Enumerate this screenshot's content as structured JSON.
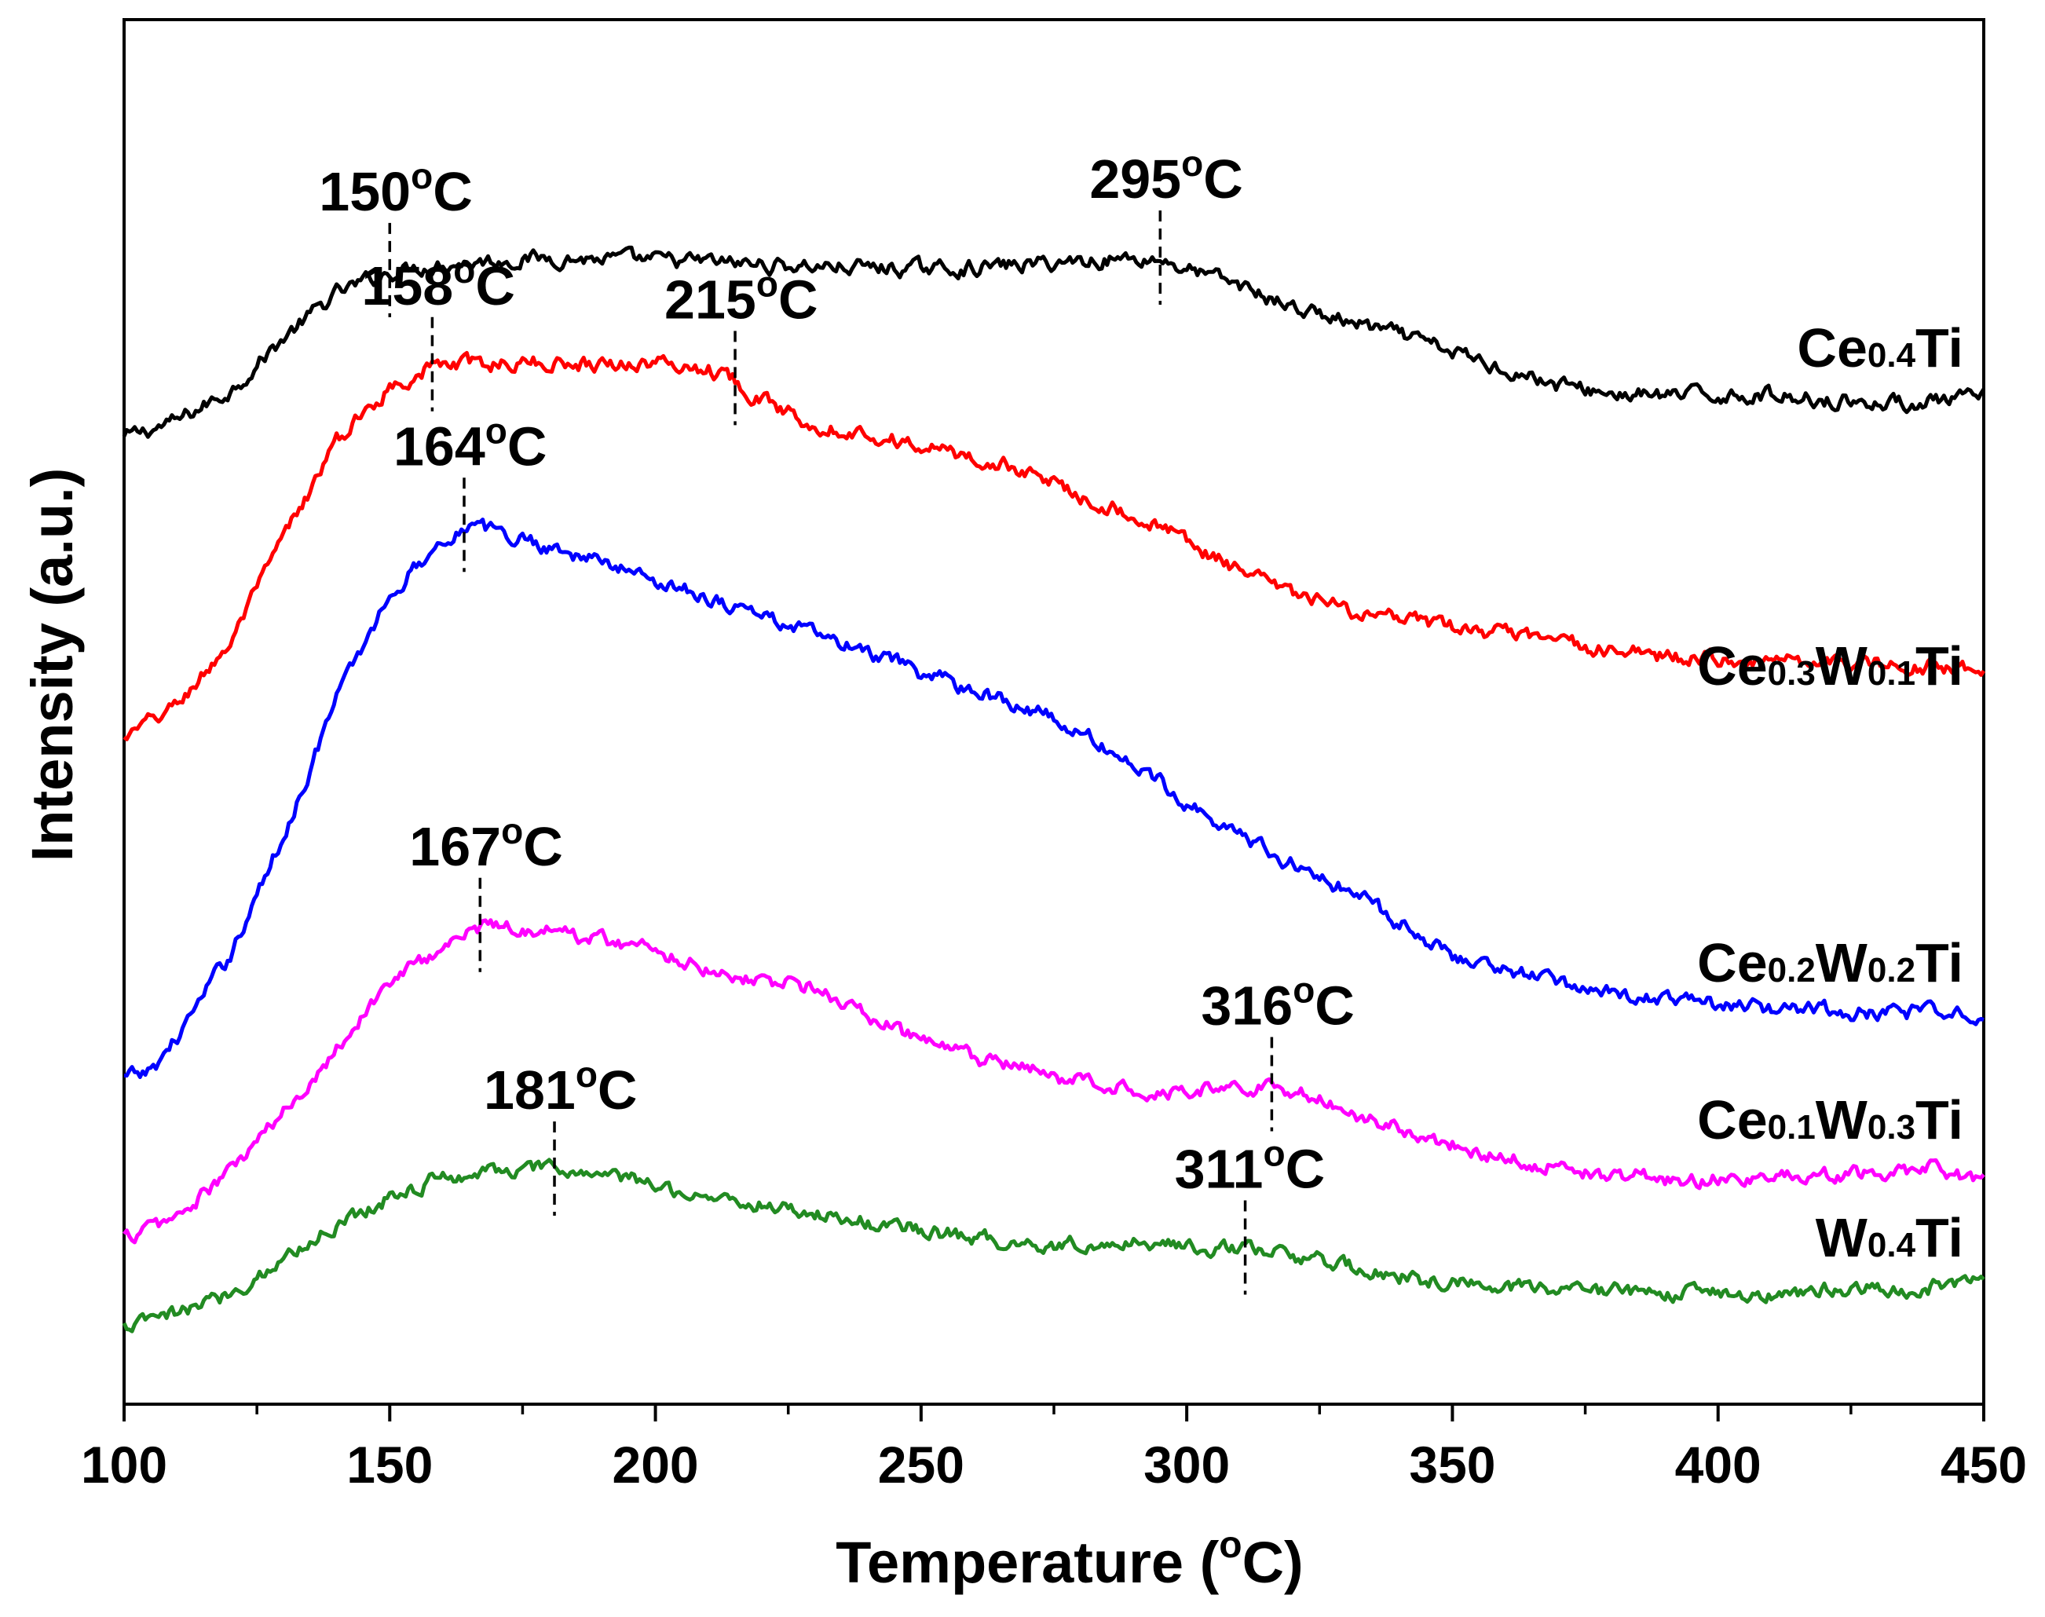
{
  "chart_data": {
    "type": "line",
    "xlabel": "Temperature (°C)",
    "xlabel_parts": {
      "main": "Temperature (",
      "sup": "o",
      "end": "C)"
    },
    "ylabel": "Intensity (a.u.)",
    "xlim": [
      100,
      450
    ],
    "ylim": [
      0,
      100
    ],
    "x_ticks": [
      100,
      150,
      200,
      250,
      300,
      350,
      400,
      450
    ],
    "x_tick_labels": [
      "100",
      "150",
      "200",
      "250",
      "300",
      "350",
      "400",
      "450"
    ],
    "minor_x_ticks": [
      125,
      175,
      225,
      275,
      325,
      375,
      425
    ],
    "y_ticks": [],
    "grid": false,
    "series": [
      {
        "name": "Ce0.4Ti",
        "label_parts": [
          {
            "t": "Ce",
            "sub": false
          },
          {
            "t": "0.4",
            "sub": true
          },
          {
            "t": "Ti",
            "sub": false
          }
        ],
        "color": "#000000",
        "x": [
          100,
          110,
          120,
          130,
          140,
          150,
          160,
          170,
          180,
          190,
          200,
          210,
          220,
          230,
          240,
          250,
          260,
          270,
          280,
          290,
          295,
          300,
          310,
          320,
          330,
          340,
          350,
          360,
          370,
          380,
          390,
          400,
          410,
          420,
          430,
          440,
          450
        ],
        "y": [
          69.8,
          71.0,
          73.2,
          77.0,
          80.2,
          81.8,
          82.4,
          82.6,
          82.8,
          82.7,
          82.6,
          82.5,
          82.3,
          82.2,
          82.1,
          82.0,
          82.1,
          82.3,
          82.6,
          82.8,
          82.7,
          82.0,
          80.8,
          79.2,
          78.2,
          77.2,
          76.0,
          74.8,
          73.6,
          73.0,
          72.8,
          72.9,
          72.9,
          72.6,
          72.3,
          72.4,
          72.7
        ]
      },
      {
        "name": "Ce0.3W0.1Ti",
        "label_parts": [
          {
            "t": "Ce",
            "sub": false
          },
          {
            "t": "0.3",
            "sub": true
          },
          {
            "t": "W",
            "sub": false
          },
          {
            "t": "0.1",
            "sub": true
          },
          {
            "t": "Ti",
            "sub": false
          }
        ],
        "color": "#ff0000",
        "x": [
          100,
          110,
          120,
          130,
          140,
          150,
          158,
          170,
          180,
          190,
          200,
          210,
          215,
          220,
          230,
          240,
          250,
          260,
          270,
          280,
          290,
          300,
          310,
          320,
          330,
          340,
          350,
          360,
          370,
          380,
          390,
          400,
          410,
          420,
          430,
          440,
          450
        ],
        "y": [
          48.0,
          50.5,
          55.0,
          62.5,
          69.5,
          73.5,
          75.0,
          75.2,
          75.2,
          75.2,
          75.2,
          74.8,
          74.0,
          72.5,
          70.8,
          70.1,
          69.2,
          68.3,
          67.4,
          65.7,
          64.2,
          62.4,
          60.1,
          58.5,
          57.4,
          56.6,
          56.1,
          55.6,
          55.0,
          54.4,
          54.0,
          53.8,
          53.8,
          53.8,
          53.5,
          53.3,
          53.2
        ]
      },
      {
        "name": "Ce0.2W0.2Ti",
        "label_parts": [
          {
            "t": "Ce",
            "sub": false
          },
          {
            "t": "0.2",
            "sub": true
          },
          {
            "t": "W",
            "sub": false
          },
          {
            "t": "0.2",
            "sub": true
          },
          {
            "t": "Ti",
            "sub": false
          }
        ],
        "color": "#0000ff",
        "x": [
          100,
          105,
          110,
          120,
          130,
          140,
          150,
          160,
          164,
          170,
          180,
          190,
          200,
          210,
          220,
          230,
          240,
          250,
          260,
          270,
          280,
          290,
          300,
          310,
          320,
          330,
          340,
          350,
          360,
          370,
          380,
          390,
          400,
          410,
          420,
          430,
          440,
          450
        ],
        "y": [
          23.5,
          24.0,
          26.5,
          32.5,
          41.0,
          51.0,
          58.5,
          62.5,
          63.4,
          63.0,
          62.0,
          60.8,
          59.6,
          58.3,
          57.0,
          55.6,
          54.2,
          52.8,
          51.6,
          50.3,
          48.5,
          46.2,
          43.6,
          41.1,
          39.0,
          37.2,
          34.8,
          32.5,
          31.3,
          30.5,
          29.8,
          29.2,
          28.8,
          28.6,
          28.4,
          28.3,
          28.2,
          28.3
        ]
      },
      {
        "name": "Ce0.1W0.3Ti",
        "label_parts": [
          {
            "t": "Ce",
            "sub": false
          },
          {
            "t": "0.1",
            "sub": true
          },
          {
            "t": "W",
            "sub": false
          },
          {
            "t": "0.3",
            "sub": true
          },
          {
            "t": "Ti",
            "sub": false
          }
        ],
        "color": "#ff00ff",
        "x": [
          100,
          110,
          120,
          130,
          140,
          150,
          160,
          167,
          170,
          180,
          190,
          200,
          210,
          220,
          230,
          240,
          250,
          260,
          270,
          280,
          290,
          300,
          310,
          316,
          320,
          330,
          340,
          350,
          360,
          370,
          380,
          390,
          400,
          410,
          420,
          430,
          440,
          450
        ],
        "y": [
          12.0,
          13.5,
          16.8,
          21.0,
          25.8,
          30.5,
          33.0,
          34.5,
          34.6,
          34.2,
          33.6,
          32.8,
          31.5,
          30.6,
          30.1,
          28.0,
          26.2,
          25.0,
          24.1,
          23.3,
          22.8,
          22.7,
          22.9,
          23.0,
          22.6,
          21.3,
          19.9,
          18.8,
          17.8,
          17.1,
          16.6,
          16.3,
          16.2,
          16.3,
          16.4,
          16.6,
          17.0,
          16.2
        ]
      },
      {
        "name": "W0.4Ti",
        "label_parts": [
          {
            "t": "W",
            "sub": false
          },
          {
            "t": "0.4",
            "sub": true
          },
          {
            "t": "Ti",
            "sub": false
          }
        ],
        "color": "#228b22",
        "x": [
          100,
          110,
          120,
          130,
          140,
          150,
          160,
          170,
          181,
          190,
          200,
          210,
          220,
          230,
          240,
          250,
          260,
          270,
          280,
          290,
          300,
          311,
          320,
          330,
          340,
          350,
          360,
          370,
          380,
          390,
          400,
          410,
          420,
          430,
          440,
          450
        ],
        "y": [
          5.5,
          6.5,
          8.0,
          10.5,
          13.0,
          15.0,
          16.4,
          16.9,
          16.9,
          16.6,
          15.8,
          15.0,
          14.4,
          13.8,
          13.1,
          12.6,
          12.0,
          11.6,
          11.6,
          11.7,
          11.5,
          11.2,
          10.6,
          9.9,
          9.2,
          8.8,
          8.5,
          8.3,
          8.1,
          8.0,
          8.0,
          8.1,
          8.2,
          8.3,
          8.5,
          8.8
        ]
      }
    ],
    "peak_markers": [
      {
        "label": "150°C",
        "num": "150",
        "sup": "o",
        "unit": "C",
        "x": 150,
        "series": 0
      },
      {
        "label": "295°C",
        "num": "295",
        "sup": "o",
        "unit": "C",
        "x": 295,
        "series": 0
      },
      {
        "label": "158°C",
        "num": "158",
        "sup": "o",
        "unit": "C",
        "x": 158,
        "series": 1
      },
      {
        "label": "215°C",
        "num": "215",
        "sup": "o",
        "unit": "C",
        "x": 215,
        "series": 1
      },
      {
        "label": "164°C",
        "num": "164",
        "sup": "o",
        "unit": "C",
        "x": 164,
        "series": 2
      },
      {
        "label": "167°C",
        "num": "167",
        "sup": "o",
        "unit": "C",
        "x": 167,
        "series": 3
      },
      {
        "label": "316°C",
        "num": "316",
        "sup": "o",
        "unit": "C",
        "x": 316,
        "series": 3
      },
      {
        "label": "181°C",
        "num": "181",
        "sup": "o",
        "unit": "C",
        "x": 181,
        "series": 4
      },
      {
        "label": "311°C",
        "num": "311",
        "sup": "o",
        "unit": "C",
        "x": 311,
        "series": 4
      }
    ]
  }
}
